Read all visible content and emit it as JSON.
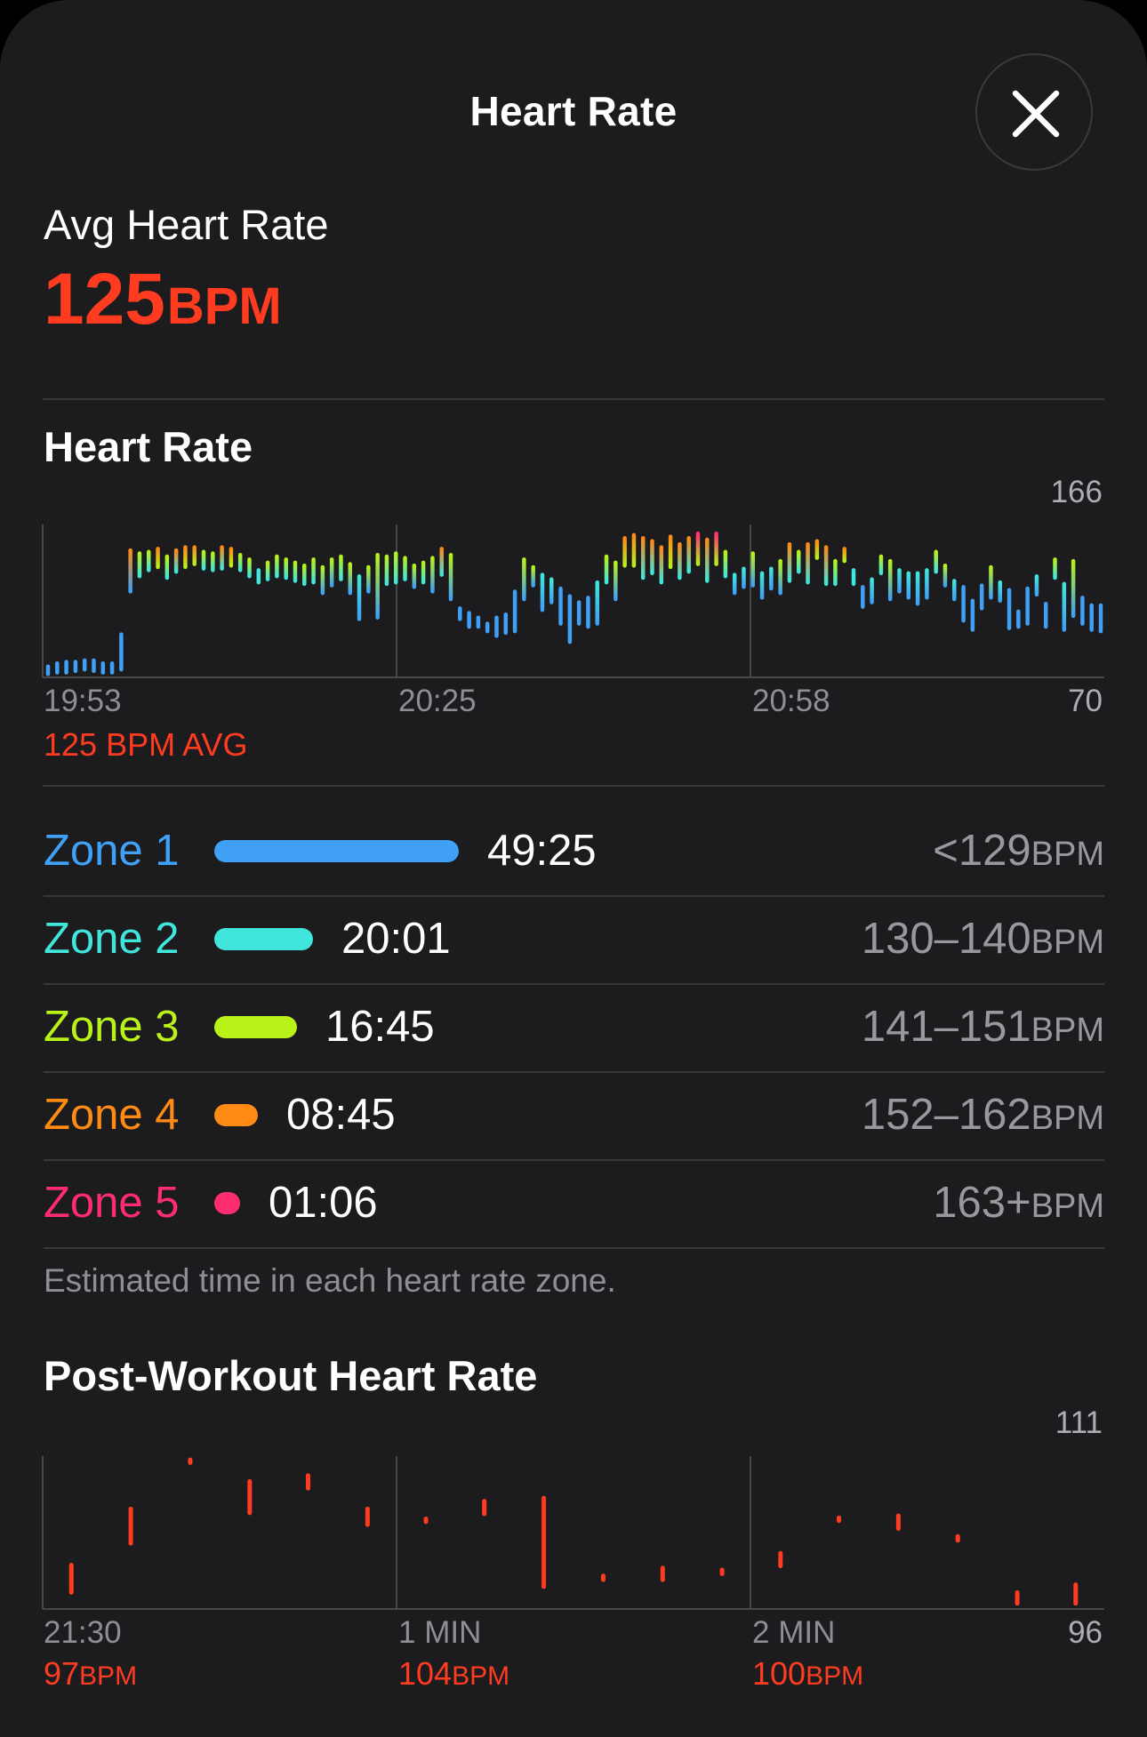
{
  "header": {
    "title": "Heart Rate"
  },
  "summary": {
    "label": "Avg Heart Rate",
    "value": "125",
    "unit": "BPM"
  },
  "hr_section": {
    "title": "Heart Rate",
    "footer": "125 BPM AVG"
  },
  "zones": {
    "rows": [
      {
        "name": "Zone 1",
        "time": "49:25",
        "range": "<129",
        "unit": "BPM",
        "color": "#3fa0f5",
        "share": 1.0
      },
      {
        "name": "Zone 2",
        "time": "20:01",
        "range": "130–140",
        "unit": "BPM",
        "color": "#40e6dc",
        "share": 0.405
      },
      {
        "name": "Zone 3",
        "time": "16:45",
        "range": "141–151",
        "unit": "BPM",
        "color": "#b8f218",
        "share": 0.339
      },
      {
        "name": "Zone 4",
        "time": "08:45",
        "range": "152–162",
        "unit": "BPM",
        "color": "#ff8a14",
        "share": 0.177
      },
      {
        "name": "Zone 5",
        "time": "01:06",
        "range": "163+",
        "unit": "BPM",
        "color": "#ff2d6f",
        "share": 0.022
      }
    ],
    "note": "Estimated time in each heart rate zone."
  },
  "post_section": {
    "title": "Post-Workout Heart Rate",
    "readings": [
      {
        "value": "97",
        "unit": "BPM"
      },
      {
        "value": "104",
        "unit": "BPM"
      },
      {
        "value": "100",
        "unit": "BPM"
      }
    ]
  },
  "chart_data": [
    {
      "type": "bar",
      "title": "Heart Rate",
      "y_range": [
        70,
        166
      ],
      "y_ticks": [
        "166",
        "70"
      ],
      "x_ticks": [
        "19:53",
        "20:25",
        "20:58"
      ],
      "grid": true,
      "zone_colors": [
        "#3fa0f5",
        "#40e6dc",
        "#b8f218",
        "#ff8a14",
        "#ff2d6f"
      ],
      "range_bars": [
        [
          71,
          76
        ],
        [
          72,
          78
        ],
        [
          72,
          79
        ],
        [
          73,
          79
        ],
        [
          74,
          80
        ],
        [
          73,
          80
        ],
        [
          72,
          78
        ],
        [
          72,
          78
        ],
        [
          74,
          97
        ],
        [
          125,
          152
        ],
        [
          135,
          150
        ],
        [
          139,
          151
        ],
        [
          141,
          153
        ],
        [
          134,
          148
        ],
        [
          138,
          152
        ],
        [
          141,
          154
        ],
        [
          143,
          154
        ],
        [
          140,
          151
        ],
        [
          139,
          150
        ],
        [
          140,
          154
        ],
        [
          142,
          153
        ],
        [
          139,
          149
        ],
        [
          135,
          146
        ],
        [
          131,
          139
        ],
        [
          133,
          144
        ],
        [
          135,
          148
        ],
        [
          134,
          146
        ],
        [
          132,
          144
        ],
        [
          130,
          142
        ],
        [
          131,
          146
        ],
        [
          124,
          141
        ],
        [
          129,
          146
        ],
        [
          133,
          148
        ],
        [
          124,
          143
        ],
        [
          107,
          135
        ],
        [
          125,
          141
        ],
        [
          108,
          149
        ],
        [
          130,
          148
        ],
        [
          131,
          150
        ],
        [
          133,
          147
        ],
        [
          128,
          142
        ],
        [
          131,
          144
        ],
        [
          125,
          147
        ],
        [
          136,
          153
        ],
        [
          120,
          149
        ],
        [
          107,
          114
        ],
        [
          102,
          111
        ],
        [
          102,
          108
        ],
        [
          99,
          104
        ],
        [
          96,
          108
        ],
        [
          98,
          110
        ],
        [
          99,
          125
        ],
        [
          120,
          146
        ],
        [
          129,
          141
        ],
        [
          113,
          136
        ],
        [
          118,
          133
        ],
        [
          104,
          127
        ],
        [
          92,
          122
        ],
        [
          104,
          118
        ],
        [
          102,
          121
        ],
        [
          104,
          131
        ],
        [
          131,
          148
        ],
        [
          120,
          144
        ],
        [
          142,
          160
        ],
        [
          142,
          162
        ],
        [
          134,
          160
        ],
        [
          137,
          158
        ],
        [
          131,
          154
        ],
        [
          141,
          161
        ],
        [
          134,
          156
        ],
        [
          138,
          160
        ],
        [
          143,
          163
        ],
        [
          132,
          159
        ],
        [
          143,
          163
        ],
        [
          135,
          151
        ],
        [
          124,
          136
        ],
        [
          128,
          140
        ],
        [
          129,
          150
        ],
        [
          121,
          137
        ],
        [
          127,
          140
        ],
        [
          124,
          145
        ],
        [
          132,
          156
        ],
        [
          138,
          151
        ],
        [
          131,
          156
        ],
        [
          147,
          158
        ],
        [
          130,
          154
        ],
        [
          130,
          145
        ],
        [
          145,
          153
        ],
        [
          130,
          139
        ],
        [
          115,
          128
        ],
        [
          118,
          133
        ],
        [
          137,
          148
        ],
        [
          120,
          145
        ],
        [
          125,
          139
        ],
        [
          121,
          137
        ],
        [
          117,
          137
        ],
        [
          121,
          139
        ],
        [
          138,
          151
        ],
        [
          129,
          142
        ],
        [
          120,
          132
        ],
        [
          106,
          128
        ],
        [
          100,
          119
        ],
        [
          114,
          129
        ],
        [
          121,
          141
        ],
        [
          119,
          131
        ],
        [
          101,
          126
        ],
        [
          102,
          112
        ],
        [
          104,
          127
        ],
        [
          123,
          135
        ],
        [
          102,
          117
        ],
        [
          134,
          146
        ],
        [
          100,
          130
        ],
        [
          109,
          145
        ],
        [
          104,
          121
        ],
        [
          100,
          116
        ],
        [
          99,
          116
        ]
      ],
      "annotation": "125 BPM AVG"
    },
    {
      "type": "bar",
      "title": "Post-Workout Heart Rate",
      "y_range": [
        96,
        111
      ],
      "y_ticks": [
        "111",
        "96"
      ],
      "x_ticks": [
        "21:30",
        "1 MIN",
        "2 MIN"
      ],
      "grid": true,
      "color": "#ff3b20",
      "range_bars": [
        [
          97.4,
          100.2
        ],
        [
          102.4,
          105.9
        ],
        [
          110.6,
          110.9
        ],
        [
          105.5,
          108.7
        ],
        [
          108.0,
          109.3
        ],
        [
          104.3,
          105.9
        ],
        [
          104.6,
          104.9
        ],
        [
          105.4,
          106.7
        ],
        [
          98.0,
          107.0
        ],
        [
          98.7,
          99.1
        ],
        [
          98.7,
          99.9
        ],
        [
          99.3,
          99.7
        ],
        [
          100.1,
          101.4
        ],
        [
          104.7,
          105.0
        ],
        [
          103.9,
          105.2
        ],
        [
          102.7,
          103.1
        ],
        [
          96.3,
          97.4
        ],
        [
          96.3,
          98.2
        ]
      ],
      "range_bar_positions": [
        0.027,
        0.083,
        0.139,
        0.195,
        0.25,
        0.306,
        0.361,
        0.416,
        0.472,
        0.528,
        0.584,
        0.64,
        0.695,
        0.75,
        0.806,
        0.862,
        0.918,
        0.973
      ],
      "readings_bpm": [
        97,
        104,
        100
      ]
    }
  ]
}
